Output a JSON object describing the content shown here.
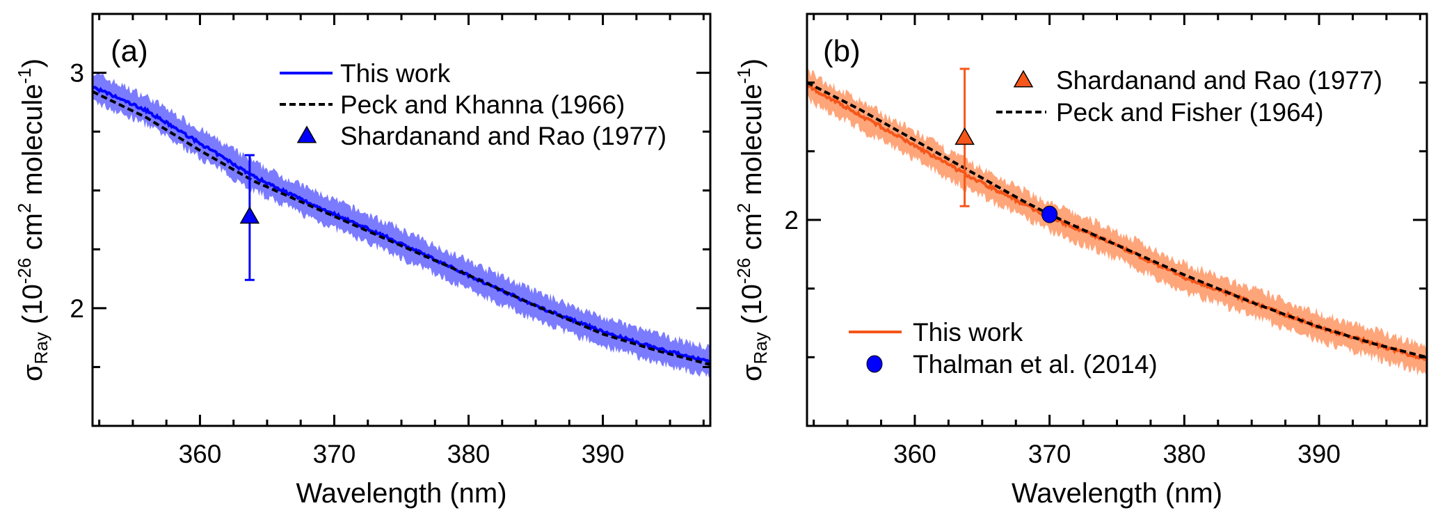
{
  "chart_data": [
    {
      "type": "line",
      "panel_label": "(a)",
      "xlabel": "Wavelength (nm)",
      "ylabel": {
        "symbol": "σ",
        "sub": "Ray",
        "open": " (10",
        "exp1": "-26",
        "mid": " cm",
        "exp2": "2",
        "mid2": " molecule",
        "exp3": "-1",
        "close": ")"
      },
      "xlim": [
        352,
        398
      ],
      "ylim": [
        1.5,
        3.25
      ],
      "xticks": [
        360,
        370,
        380,
        390
      ],
      "xtick_labels": [
        "360",
        "370",
        "380",
        "390"
      ],
      "x_minor_step": 2.5,
      "yticks": [
        2,
        3
      ],
      "ytick_labels": [
        "2",
        "3"
      ],
      "y_minor_step": 0.25,
      "series": [
        {
          "name": "This work",
          "style": "solid",
          "color": "#0000ff",
          "band_color": "#7b7bff",
          "x": [
            352,
            356,
            360,
            364,
            368,
            370,
            374,
            380,
            385,
            390,
            394,
            398
          ],
          "y": [
            2.94,
            2.84,
            2.7,
            2.56,
            2.45,
            2.4,
            2.3,
            2.14,
            2.01,
            1.9,
            1.83,
            1.77
          ],
          "uncertainty": 0.06
        },
        {
          "name": "Peck and Khanna (1966)",
          "style": "dashed",
          "color": "#000000",
          "x": [
            352,
            356,
            360,
            364,
            368,
            370,
            374,
            380,
            385,
            390,
            394,
            398
          ],
          "y": [
            2.92,
            2.81,
            2.67,
            2.54,
            2.44,
            2.39,
            2.29,
            2.14,
            2.01,
            1.89,
            1.82,
            1.76
          ]
        },
        {
          "name": "Shardanand and Rao (1977)",
          "style": "marker-triangle",
          "color": "#0000ff",
          "x": [
            363.7
          ],
          "y": [
            2.39
          ],
          "yerr_low": [
            2.12
          ],
          "yerr_high": [
            2.65
          ]
        }
      ],
      "legend_placement": "top-right"
    },
    {
      "type": "line",
      "panel_label": "(b)",
      "xlabel": "Wavelength (nm)",
      "ylabel": {
        "symbol": "σ",
        "sub": "Ray",
        "open": " (10",
        "exp1": "-26",
        "mid": " cm",
        "exp2": "2",
        "mid2": " molecule",
        "exp3": "-1",
        "close": ")"
      },
      "xlim": [
        352,
        398
      ],
      "ylim": [
        1.25,
        2.75
      ],
      "xticks": [
        360,
        370,
        380,
        390
      ],
      "xtick_labels": [
        "360",
        "370",
        "380",
        "390"
      ],
      "x_minor_step": 2.5,
      "yticks": [
        2
      ],
      "ytick_labels": [
        "2"
      ],
      "y_minor_step": 0.25,
      "series": [
        {
          "name": "This work",
          "style": "solid",
          "color": "#f5561a",
          "band_color": "#ffa57a",
          "x": [
            352,
            356,
            360,
            364,
            368,
            370,
            374,
            380,
            385,
            390,
            394,
            398
          ],
          "y": [
            2.49,
            2.38,
            2.27,
            2.16,
            2.06,
            2.01,
            1.93,
            1.79,
            1.7,
            1.61,
            1.55,
            1.49
          ],
          "uncertainty": 0.05
        },
        {
          "name": "Peck and Fisher (1964)",
          "style": "dashed",
          "color": "#000000",
          "x": [
            352,
            356,
            360,
            364,
            368,
            370,
            374,
            380,
            385,
            390,
            394,
            398
          ],
          "y": [
            2.5,
            2.4,
            2.29,
            2.18,
            2.07,
            2.02,
            1.93,
            1.8,
            1.7,
            1.61,
            1.55,
            1.5
          ]
        },
        {
          "name": "Shardanand and Rao (1977)",
          "style": "marker-triangle",
          "color": "#f5561a",
          "x": [
            363.7
          ],
          "y": [
            2.3
          ],
          "yerr_low": [
            2.05
          ],
          "yerr_high": [
            2.55
          ]
        },
        {
          "name": "Thalman et al. (2014)",
          "style": "marker-circle",
          "color": "#0000ff",
          "x": [
            370
          ],
          "y": [
            2.02
          ],
          "yerr_low": [
            2.0
          ],
          "yerr_high": [
            2.04
          ]
        }
      ],
      "legend_placement": "top-right and bottom-left"
    }
  ]
}
